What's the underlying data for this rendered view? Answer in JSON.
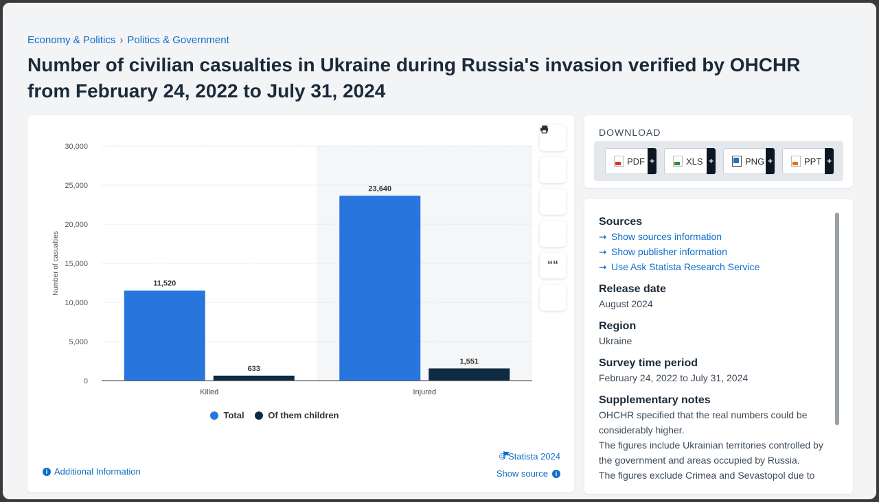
{
  "breadcrumb": {
    "items": [
      "Economy & Politics",
      "Politics & Government"
    ],
    "separator": "›"
  },
  "title": "Number of civilian casualties in Ukraine during Russia's invasion verified by OHCHR from February 24, 2022 to July 31, 2024",
  "toolbar": {
    "icons": [
      "star-icon",
      "bell-icon",
      "gear-icon",
      "share-icon",
      "quote-icon",
      "print-icon"
    ],
    "quote_glyph": "““"
  },
  "chart_data": {
    "type": "bar",
    "categories": [
      "Killed",
      "Injured"
    ],
    "series": [
      {
        "name": "Total",
        "values": [
          11520,
          23640
        ],
        "labels": [
          "11,520",
          "23,640"
        ],
        "color": "#2876dd"
      },
      {
        "name": "Of them children",
        "values": [
          633,
          1551
        ],
        "labels": [
          "633",
          "1,551"
        ],
        "color": "#0f2a43"
      }
    ],
    "ylabel": "Number of casualties",
    "ylim": [
      0,
      30000
    ],
    "yticks": [
      "0",
      "5,000",
      "10,000",
      "15,000",
      "20,000",
      "25,000",
      "30,000"
    ],
    "ytick_values": [
      0,
      5000,
      10000,
      15000,
      20000,
      25000,
      30000
    ],
    "grid": true,
    "legend": "bottom"
  },
  "footer": {
    "additional_info": "Additional Information",
    "copyright": "© Statista 2024",
    "show_source": "Show source"
  },
  "download": {
    "title": "DOWNLOAD",
    "buttons": [
      {
        "label": "PDF",
        "plus": "+",
        "color": "#d9342b"
      },
      {
        "label": "XLS",
        "plus": "+",
        "color": "#2e8b3a"
      },
      {
        "label": "PNG",
        "plus": "+",
        "color": "#2b6cc4"
      },
      {
        "label": "PPT",
        "plus": "+",
        "color": "#e0731f"
      }
    ]
  },
  "sources": {
    "heading": "Sources",
    "links": [
      "Show sources information",
      "Show publisher information",
      "Use Ask Statista Research Service"
    ],
    "release_date": {
      "label": "Release date",
      "value": "August 2024"
    },
    "region": {
      "label": "Region",
      "value": "Ukraine"
    },
    "survey_period": {
      "label": "Survey time period",
      "value": "February 24, 2022 to July 31, 2024"
    },
    "notes": {
      "label": "Supplementary notes",
      "lines": [
        "OHCHR specified that the real numbers could be considerably higher.",
        "The figures include Ukrainian territories controlled by the government and areas occupied by Russia.",
        "The figures exclude Crimea and Sevastopol due to"
      ]
    }
  }
}
